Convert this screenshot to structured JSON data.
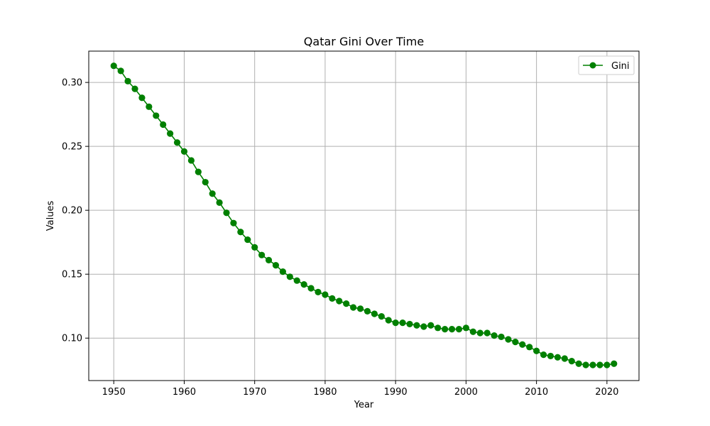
{
  "chart_data": {
    "type": "line",
    "title": "Qatar Gini Over Time",
    "xlabel": "Year",
    "ylabel": "Values",
    "xlim": [
      1946.45,
      2024.55
    ],
    "ylim": [
      0.0668,
      0.3245
    ],
    "xticks": [
      1950,
      1960,
      1970,
      1980,
      1990,
      2000,
      2010,
      2020
    ],
    "xtick_labels": [
      "1950",
      "1960",
      "1970",
      "1980",
      "1990",
      "2000",
      "2010",
      "2020"
    ],
    "yticks": [
      0.1,
      0.15,
      0.2,
      0.25,
      0.3
    ],
    "ytick_labels": [
      "0.10",
      "0.15",
      "0.20",
      "0.25",
      "0.30"
    ],
    "grid": true,
    "legend_position": "top-right",
    "series": [
      {
        "name": "Gini",
        "color": "#008000",
        "marker": "circle",
        "x": [
          1950,
          1951,
          1952,
          1953,
          1954,
          1955,
          1956,
          1957,
          1958,
          1959,
          1960,
          1961,
          1962,
          1963,
          1964,
          1965,
          1966,
          1967,
          1968,
          1969,
          1970,
          1971,
          1972,
          1973,
          1974,
          1975,
          1976,
          1977,
          1978,
          1979,
          1980,
          1981,
          1982,
          1983,
          1984,
          1985,
          1986,
          1987,
          1988,
          1989,
          1990,
          1991,
          1992,
          1993,
          1994,
          1995,
          1996,
          1997,
          1998,
          1999,
          2000,
          2001,
          2002,
          2003,
          2004,
          2005,
          2006,
          2007,
          2008,
          2009,
          2010,
          2011,
          2012,
          2013,
          2014,
          2015,
          2016,
          2017,
          2018,
          2019,
          2020,
          2021
        ],
        "values": [
          0.313,
          0.309,
          0.301,
          0.295,
          0.288,
          0.281,
          0.274,
          0.267,
          0.26,
          0.253,
          0.246,
          0.239,
          0.23,
          0.222,
          0.213,
          0.206,
          0.198,
          0.19,
          0.183,
          0.177,
          0.171,
          0.165,
          0.161,
          0.157,
          0.152,
          0.148,
          0.145,
          0.142,
          0.139,
          0.136,
          0.134,
          0.131,
          0.129,
          0.127,
          0.124,
          0.123,
          0.121,
          0.119,
          0.117,
          0.114,
          0.112,
          0.112,
          0.111,
          0.11,
          0.109,
          0.11,
          0.108,
          0.107,
          0.107,
          0.107,
          0.108,
          0.105,
          0.104,
          0.104,
          0.102,
          0.101,
          0.099,
          0.097,
          0.095,
          0.093,
          0.09,
          0.087,
          0.086,
          0.085,
          0.084,
          0.082,
          0.08,
          0.079,
          0.079,
          0.079,
          0.079,
          0.08
        ]
      }
    ]
  }
}
